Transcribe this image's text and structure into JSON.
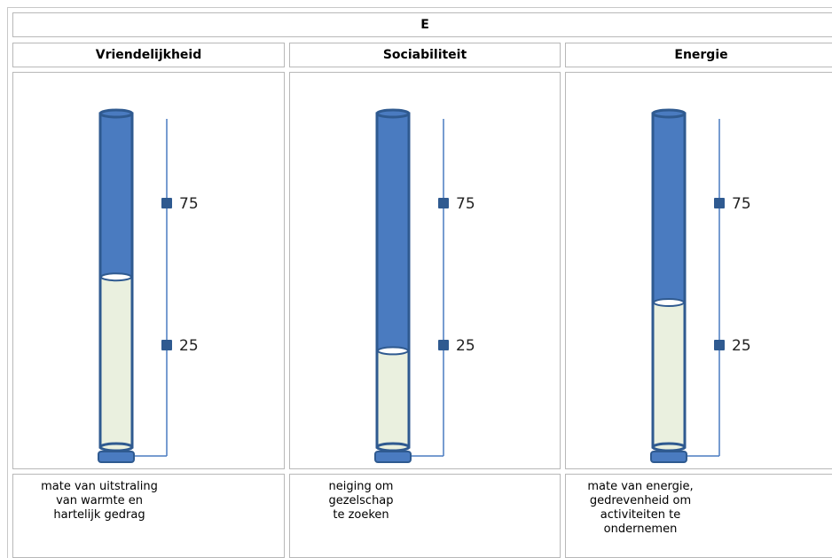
{
  "table": {
    "group_header": "E",
    "columns": [
      {
        "title": "Vriendelijkheid",
        "description": "mate van uitstraling\nvan warmte en\nhartelijk gedrag"
      },
      {
        "title": "Sociabiliteit",
        "description": "neiging om\ngezelschap\nte zoeken"
      },
      {
        "title": "Energie",
        "description": "mate van energie,\ngedrevenheid om\nactiviteiten te\nondernemen"
      }
    ]
  },
  "colors": {
    "tube_empty": "#4a7bc0",
    "tube_fill": "#eaf0df",
    "tube_outline": "#2f5a90",
    "axis_line": "#4a7bc0",
    "marker": "#2f5a90"
  },
  "chart_data": [
    {
      "type": "bar",
      "orientation": "vertical-gauge",
      "title": "Vriendelijkheid",
      "value": 49,
      "ylim": [
        0,
        100
      ],
      "ticks": [
        {
          "value": 75,
          "label": "75"
        },
        {
          "value": 25,
          "label": "25"
        }
      ]
    },
    {
      "type": "bar",
      "orientation": "vertical-gauge",
      "title": "Sociabiliteit",
      "value": 23,
      "ylim": [
        0,
        100
      ],
      "ticks": [
        {
          "value": 75,
          "label": "75"
        },
        {
          "value": 25,
          "label": "25"
        }
      ]
    },
    {
      "type": "bar",
      "orientation": "vertical-gauge",
      "title": "Energie",
      "value": 40,
      "ylim": [
        0,
        100
      ],
      "ticks": [
        {
          "value": 75,
          "label": "75"
        },
        {
          "value": 25,
          "label": "25"
        }
      ]
    }
  ]
}
